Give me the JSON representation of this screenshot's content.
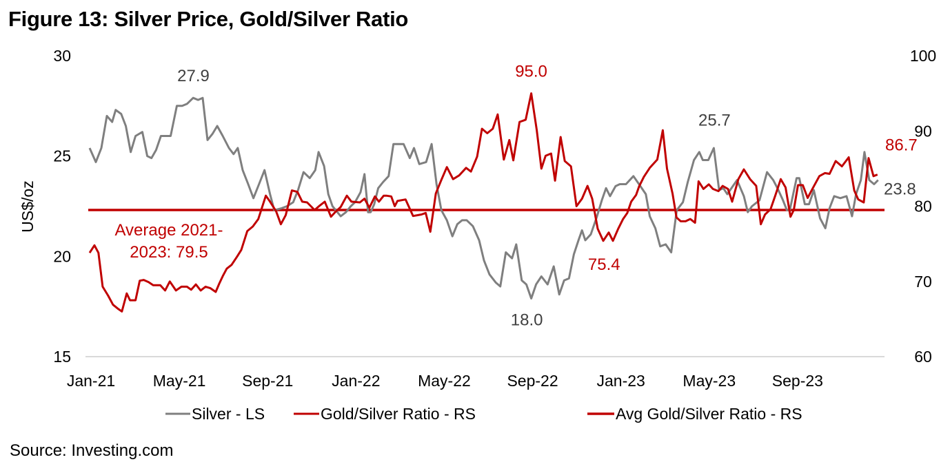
{
  "title": "Figure 13: Silver Price, Gold/Silver Ratio",
  "source": "Source: Investing.com",
  "colors": {
    "silver": "#7f7f7f",
    "ratio": "#c00000",
    "avg": "#c00000",
    "grid": "#d9d9d9",
    "text": "#000000",
    "silver_label": "#404040"
  },
  "chart_data": {
    "type": "line",
    "title": "Figure 13: Silver Price, Gold/Silver Ratio",
    "xlabel": "",
    "ylabel": "US$/oz",
    "ylabel_right": "",
    "ylim": [
      15,
      30
    ],
    "ylim_right": [
      60,
      100
    ],
    "yticks": [
      "30",
      "25",
      "20",
      "15"
    ],
    "yticks_values": [
      30,
      25,
      20,
      15
    ],
    "yticks_right": [
      "100",
      "90",
      "80",
      "70",
      "60"
    ],
    "yticks_right_values": [
      100,
      90,
      80,
      70,
      60
    ],
    "xticks": [
      "Jan-21",
      "May-21",
      "Sep-21",
      "Jan-22",
      "May-22",
      "Sep-22",
      "Jan-23",
      "May-23",
      "Sep-23"
    ],
    "x_range_months": [
      0,
      36
    ],
    "xticks_months": [
      0,
      4,
      8,
      12,
      16,
      20,
      24,
      28,
      32
    ],
    "grid": false,
    "legend_position": "bottom",
    "legend": [
      "Silver - LS",
      "Gold/Silver Ratio - RS",
      "Avg Gold/Silver Ratio - RS"
    ],
    "series": [
      {
        "name": "Silver - LS",
        "axis": "left",
        "months": [
          0.0,
          0.28,
          0.53,
          0.78,
          1.02,
          1.18,
          1.43,
          1.64,
          1.86,
          2.08,
          2.39,
          2.61,
          2.8,
          3.01,
          3.23,
          3.45,
          3.67,
          3.95,
          4.19,
          4.41,
          4.69,
          4.91,
          5.12,
          5.34,
          5.56,
          5.78,
          6.03,
          6.31,
          6.52,
          6.71,
          6.93,
          7.18,
          7.42,
          7.67,
          7.92,
          8.17,
          8.36,
          8.7,
          8.94,
          9.22,
          9.44,
          9.69,
          9.97,
          10.22,
          10.37,
          10.62,
          10.81,
          11.0,
          11.37,
          11.61,
          11.83,
          12.02,
          12.27,
          12.45,
          12.61,
          12.73,
          12.89,
          13.07,
          13.29,
          13.54,
          13.76,
          14.22,
          14.5,
          14.69,
          14.93,
          15.24,
          15.49,
          15.71,
          15.93,
          16.18,
          16.43,
          16.65,
          16.87,
          17.08,
          17.36,
          17.64,
          17.86,
          18.11,
          18.39,
          18.6,
          18.85,
          19.13,
          19.32,
          19.57,
          19.78,
          20.0,
          20.22,
          20.46,
          20.74,
          21.02,
          21.27,
          21.49,
          21.71,
          21.93,
          22.14,
          22.3,
          22.45,
          22.7,
          22.98,
          23.2,
          23.39,
          23.57,
          23.82,
          24.01,
          24.29,
          24.63,
          24.88,
          25.19,
          25.37,
          25.62,
          25.84,
          26.09,
          26.34,
          26.59,
          26.87,
          27.09,
          27.37,
          27.61,
          27.77,
          28.02,
          28.27,
          28.51,
          28.7,
          28.88,
          29.13,
          29.32,
          29.63,
          29.81,
          30.0,
          30.34,
          30.68,
          30.96,
          31.15,
          31.4,
          31.58,
          31.71,
          32.02,
          32.14,
          32.39,
          32.58,
          32.8,
          33.08,
          33.32,
          33.51,
          33.72,
          34.0,
          34.28,
          34.53,
          34.71,
          34.93,
          35.09,
          35.31,
          35.53,
          35.71
        ],
        "values": [
          25.4,
          24.7,
          25.4,
          27.0,
          26.7,
          27.3,
          27.1,
          26.5,
          25.2,
          26.0,
          26.2,
          25.0,
          24.9,
          25.3,
          26.0,
          26.0,
          26.0,
          27.5,
          27.5,
          27.6,
          27.9,
          27.8,
          27.9,
          25.8,
          26.1,
          26.5,
          26.0,
          25.4,
          25.1,
          25.4,
          24.3,
          23.6,
          22.9,
          23.6,
          24.3,
          23.1,
          22.3,
          22.4,
          22.5,
          22.7,
          23.3,
          24.2,
          23.9,
          24.3,
          25.2,
          24.5,
          23.1,
          22.5,
          22.0,
          22.2,
          22.5,
          22.7,
          23.2,
          24.1,
          22.2,
          22.2,
          22.6,
          23.4,
          23.7,
          24.0,
          25.6,
          25.6,
          24.9,
          25.4,
          24.6,
          24.7,
          25.6,
          23.6,
          22.3,
          21.8,
          21.0,
          21.6,
          21.8,
          21.8,
          21.5,
          20.8,
          19.8,
          19.1,
          18.7,
          18.5,
          20.2,
          19.9,
          20.6,
          18.8,
          18.6,
          17.9,
          18.6,
          19.0,
          18.6,
          19.5,
          18.1,
          18.8,
          18.9,
          20.1,
          20.8,
          21.3,
          20.8,
          21.1,
          22.0,
          22.8,
          23.4,
          23.0,
          23.5,
          23.6,
          23.6,
          24.0,
          23.6,
          23.1,
          22.0,
          21.4,
          20.5,
          20.6,
          20.2,
          22.3,
          22.7,
          23.7,
          24.8,
          25.2,
          24.8,
          24.8,
          25.4,
          23.3,
          23.4,
          23.1,
          23.5,
          23.8,
          23.0,
          22.2,
          22.5,
          22.8,
          24.2,
          23.8,
          23.4,
          22.8,
          22.3,
          22.3,
          23.9,
          23.9,
          22.6,
          22.6,
          23.3,
          21.9,
          21.4,
          22.4,
          23.0,
          22.9,
          23.0,
          22.0,
          23.1,
          23.8,
          25.2,
          23.8,
          23.6,
          23.8,
          23.8
        ]
      },
      {
        "name": "Gold/Silver Ratio - RS",
        "axis": "right",
        "months": [
          0.0,
          0.22,
          0.4,
          0.59,
          0.84,
          1.06,
          1.27,
          1.46,
          1.68,
          1.83,
          2.08,
          2.27,
          2.45,
          2.67,
          2.88,
          3.2,
          3.42,
          3.63,
          3.91,
          4.16,
          4.41,
          4.6,
          4.81,
          5.03,
          5.25,
          5.47,
          5.71,
          5.87,
          6.03,
          6.21,
          6.43,
          6.68,
          6.87,
          7.14,
          7.39,
          7.64,
          7.98,
          8.17,
          8.45,
          8.66,
          8.88,
          9.16,
          9.41,
          9.63,
          9.85,
          10.19,
          10.43,
          10.65,
          10.93,
          11.12,
          11.37,
          11.65,
          11.86,
          12.24,
          12.45,
          12.67,
          12.92,
          13.1,
          13.32,
          13.44,
          13.66,
          13.82,
          13.94,
          14.31,
          14.65,
          14.84,
          15.03,
          15.22,
          15.43,
          15.68,
          15.93,
          16.18,
          16.46,
          16.74,
          17.05,
          17.27,
          17.55,
          17.77,
          18.01,
          18.26,
          18.48,
          18.76,
          19.01,
          19.19,
          19.47,
          19.75,
          20.0,
          20.25,
          20.46,
          20.65,
          20.9,
          21.08,
          21.33,
          21.52,
          21.8,
          22.05,
          22.3,
          22.55,
          22.76,
          23.01,
          23.26,
          23.51,
          23.7,
          23.94,
          24.16,
          24.35,
          24.53,
          24.75,
          24.88,
          25.1,
          25.37,
          25.71,
          25.96,
          26.15,
          26.4,
          26.58,
          26.77,
          26.99,
          27.2,
          27.42,
          27.58,
          27.8,
          28.04,
          28.23,
          28.48,
          28.67,
          28.91,
          29.1,
          29.38,
          29.63,
          29.91,
          30.19,
          30.4,
          30.59,
          30.84,
          31.05,
          31.3,
          31.52,
          31.74,
          31.89,
          32.08,
          32.3,
          32.52,
          32.77,
          33.05,
          33.3,
          33.51,
          33.79,
          34.07,
          34.38,
          34.63,
          34.81,
          35.06,
          35.28,
          35.5,
          35.68
        ],
        "values": [
          73.8,
          74.8,
          73.8,
          69.3,
          68.1,
          66.9,
          66.4,
          66.0,
          68.4,
          67.5,
          67.5,
          70.1,
          70.2,
          69.9,
          69.5,
          69.5,
          68.8,
          70.0,
          68.8,
          69.3,
          69.3,
          68.9,
          69.6,
          68.8,
          69.3,
          69.1,
          68.6,
          69.7,
          70.7,
          71.7,
          72.2,
          73.3,
          74.2,
          76.7,
          77.3,
          78.3,
          81.4,
          80.6,
          79.3,
          77.6,
          78.8,
          82.1,
          81.9,
          80.6,
          80.5,
          79.5,
          80.1,
          80.6,
          78.6,
          79.2,
          79.9,
          81.4,
          80.6,
          80.5,
          81.0,
          79.8,
          81.3,
          80.6,
          81.4,
          81.4,
          81.3,
          80.0,
          80.7,
          80.9,
          78.7,
          78.8,
          78.9,
          79.1,
          76.6,
          81.7,
          83.5,
          85.2,
          83.6,
          84.1,
          85.1,
          84.6,
          86.6,
          90.3,
          89.7,
          90.3,
          92.2,
          86.2,
          88.8,
          86.1,
          91.2,
          91.5,
          95.0,
          90.1,
          85.0,
          86.7,
          87.0,
          83.4,
          89.2,
          86.0,
          85.3,
          80.0,
          81.0,
          82.7,
          81.0,
          77.0,
          75.4,
          76.5,
          75.4,
          77.0,
          78.3,
          79.1,
          80.6,
          81.5,
          82.6,
          83.9,
          85.1,
          86.2,
          90.1,
          85.0,
          81.7,
          78.5,
          78.0,
          78.0,
          78.3,
          77.8,
          83.3,
          82.3,
          82.9,
          82.3,
          82.0,
          82.7,
          82.3,
          80.6,
          83.6,
          84.9,
          83.6,
          82.7,
          77.6,
          78.9,
          79.6,
          81.4,
          83.6,
          82.5,
          78.6,
          79.5,
          82.8,
          82.8,
          81.1,
          82.5,
          84.0,
          84.4,
          84.3,
          86.0,
          85.3,
          86.5,
          82.1,
          80.9,
          80.5,
          86.4,
          84.0,
          84.2,
          86.7
        ]
      },
      {
        "name": "Avg Gold/Silver Ratio - RS",
        "axis": "right",
        "constant": 79.5
      }
    ],
    "annotations": [
      {
        "text": "27.9",
        "series": "Silver - LS",
        "month": 4.7,
        "value": 27.9,
        "color": "#404040"
      },
      {
        "text": "95.0",
        "series": "Gold/Silver Ratio - RS",
        "month": 20.0,
        "value": 95.0,
        "color": "#c00000"
      },
      {
        "text": "18.0",
        "series": "Silver - LS",
        "month": 19.8,
        "value": 18.0,
        "color": "#404040"
      },
      {
        "text": "75.4",
        "series": "Gold/Silver Ratio - RS",
        "month": 23.3,
        "value": 75.4,
        "color": "#c00000"
      },
      {
        "text": "25.7",
        "series": "Silver - LS",
        "month": 28.3,
        "value": 25.7,
        "color": "#404040"
      },
      {
        "text": "86.7",
        "series": "Gold/Silver Ratio - RS",
        "month": 35.7,
        "value": 86.7,
        "color": "#c00000"
      },
      {
        "text": "23.8",
        "series": "Silver - LS",
        "month": 35.7,
        "value": 23.8,
        "color": "#404040"
      },
      {
        "text_line1": "Average 2021-",
        "text_line2": "2023: 79.5",
        "series": "Avg Gold/Silver Ratio - RS",
        "color": "#c00000"
      }
    ]
  }
}
